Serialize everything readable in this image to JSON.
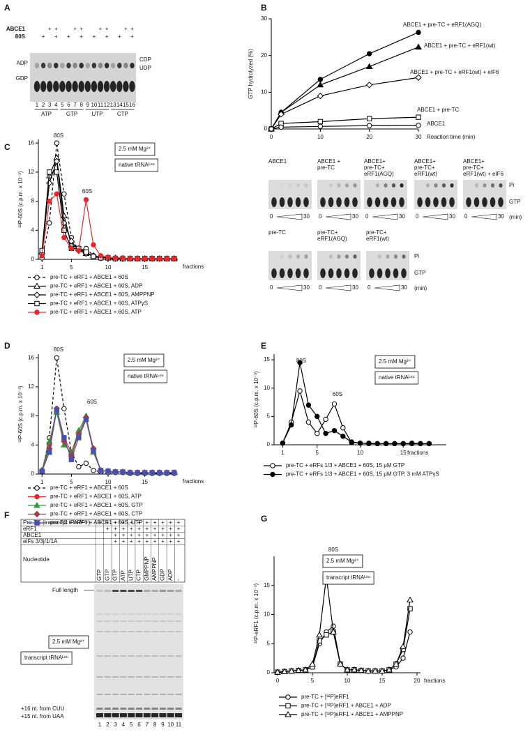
{
  "panels": [
    "A",
    "B",
    "C",
    "D",
    "E",
    "F",
    "G"
  ],
  "gel_a": {
    "rows": [
      {
        "label": "ABCE1",
        "marks": [
          null,
          null,
          "+",
          "+",
          null,
          null,
          "+",
          "+",
          null,
          null,
          "+",
          "+",
          null,
          null,
          "+",
          "+"
        ]
      },
      {
        "label": "80S",
        "marks": [
          null,
          "+",
          null,
          "+",
          null,
          "+",
          null,
          "+",
          null,
          "+",
          null,
          "+",
          null,
          "+",
          null,
          "+"
        ]
      }
    ],
    "left_labels": [
      "ADP",
      "GDP"
    ],
    "right_labels": [
      "CDP",
      "UDP"
    ],
    "lanes": [
      1,
      2,
      3,
      4,
      5,
      6,
      7,
      8,
      9,
      10,
      11,
      12,
      13,
      14,
      15,
      16
    ],
    "groups": [
      "ATP",
      "GTP",
      "UTP",
      "CTP"
    ]
  },
  "gels_b": {
    "row1": {
      "titles": [
        [
          "ABCE1"
        ],
        [
          "ABCE1 +",
          "pre-TC"
        ],
        [
          "ABCE1+",
          "pre-TC+",
          "eRF1(AGQ)"
        ],
        [
          "ABCE1+",
          "pre-TC+",
          "eRF1(wt)"
        ],
        [
          "ABCE1+",
          "pre-TC+",
          "eRF1(wt) + eIF6"
        ]
      ],
      "right": [
        "Pi",
        "GTP"
      ],
      "scale": [
        "0",
        "30"
      ],
      "unit": "(min)"
    },
    "row2": {
      "titles": [
        [
          "pre-TC"
        ],
        [
          "pre-TC+",
          "eRF1(AGQ)"
        ],
        [
          "pre-TC+",
          "eRF1(wt)"
        ]
      ],
      "right": [
        "Pi",
        "GTP"
      ],
      "scale": [
        "0",
        "30"
      ],
      "unit": "(min)"
    }
  },
  "panel_f": {
    "rows": [
      {
        "label": "Pre-TC (transcript tRNAᴸᵉᵘ)",
        "marks": [
          "+",
          "+",
          "+",
          "+",
          "+",
          "+",
          "+",
          "+",
          "+",
          "+",
          "+"
        ]
      },
      {
        "label": "eRF1",
        "marks": [
          null,
          "+",
          "+",
          "+",
          "+",
          "+",
          "+",
          "+",
          "+",
          "+",
          "+"
        ]
      },
      {
        "label": "ABCE1",
        "marks": [
          null,
          null,
          "+",
          "+",
          "+",
          "+",
          "+",
          "+",
          "+",
          "+",
          "+"
        ]
      },
      {
        "label": "eIFs 3/3j/1/1A",
        "marks": [
          null,
          null,
          "+",
          "+",
          "+",
          "+",
          "+",
          "+",
          "+",
          "+",
          "+"
        ]
      }
    ],
    "nucleotide_label": "Nucleotide",
    "nucleotides": [
      "GTP",
      "GTP",
      "GTP",
      "ATP",
      "UTP",
      "CTP",
      "GMPPNP",
      "AMPPNP",
      "GDP",
      "ADP",
      "-"
    ],
    "bands": [
      "Full length",
      "+16 nt. from CUU",
      "+15 nt. from UAA"
    ],
    "boxes": [
      "2.5 mM Mg²⁺",
      "transcript tRNAᴸᵉᵘ"
    ],
    "lanes": [
      1,
      2,
      3,
      4,
      5,
      6,
      7,
      8,
      9,
      10,
      11
    ]
  },
  "chart_data": [
    {
      "type": "line",
      "ylabel": "GTP hydrolyzed (%)",
      "xlabel": "Reaction time (min)",
      "x": [
        0,
        2,
        10,
        20,
        30
      ],
      "xlim": [
        0,
        30
      ],
      "xticks": [
        0,
        10,
        20,
        30
      ],
      "ylim": [
        0,
        30
      ],
      "yticks": [
        0,
        10,
        20,
        30
      ],
      "series": [
        {
          "name": "ABCE1 + pre-TC + eRF1(AGQ)",
          "color": "#000000",
          "marker": "circle",
          "filled": true,
          "values": [
            0,
            4.5,
            13.5,
            20.5,
            26.3
          ]
        },
        {
          "name": "ABCE1 + pre-TC + eRF1(wt)",
          "color": "#000000",
          "marker": "triangle",
          "filled": true,
          "values": [
            0,
            4.5,
            12,
            17,
            22.3
          ]
        },
        {
          "name": "ABCE1 + pre-TC + eRF1(wt) + eIF6",
          "color": "#000000",
          "marker": "diamond",
          "filled": false,
          "values": [
            0,
            4,
            9,
            12,
            14
          ]
        },
        {
          "name": "ABCE1 + pre-TC",
          "color": "#000000",
          "marker": "square",
          "filled": false,
          "values": [
            0,
            1.5,
            2,
            2.8,
            3.2
          ]
        },
        {
          "name": "ABCE1",
          "color": "#000000",
          "marker": "circle",
          "filled": false,
          "values": [
            0,
            0.5,
            0.7,
            0.9,
            1
          ]
        }
      ]
    },
    {
      "type": "line",
      "ylabel": "³²P-60S (c.p.m. x 10⁻³)",
      "xlabel": "fractions",
      "annotations": [
        "80S",
        "60S"
      ],
      "boxes": [
        "2.5 mM Mg²⁺",
        "native tRNAᴸᵉᵘ"
      ],
      "x": [
        1,
        2,
        3,
        4,
        5,
        6,
        7,
        8,
        9,
        10,
        11,
        12,
        13,
        14,
        15,
        16,
        17,
        18,
        19
      ],
      "xlim": [
        0.5,
        19.5
      ],
      "xticks": [
        1,
        5,
        10,
        15
      ],
      "ylim": [
        0,
        16.5
      ],
      "yticks": [
        0,
        4,
        8,
        12,
        16
      ],
      "series": [
        {
          "name": "pre-TC + eRF1 + ABCE1 + 60S",
          "color": "#000000",
          "marker": "circle",
          "filled": false,
          "dash": true,
          "values": [
            0.2,
            5,
            16,
            9,
            3,
            1.2,
            1.5,
            0.5,
            0.3,
            0.2,
            0.2,
            0.2,
            0.1,
            0.1,
            0.1,
            0.1,
            0.1,
            0.1,
            0.1
          ]
        },
        {
          "name": "pre-TC + eRF1 + ABCE1 + 60S, ADP",
          "color": "#000000",
          "marker": "triangle",
          "filled": false,
          "values": [
            1,
            11.5,
            14,
            6,
            2,
            1.5,
            0.8,
            0.5,
            0.3,
            0.2,
            0.2,
            0.1,
            0.1,
            0.1,
            0.1,
            0.1,
            0.1,
            0.1,
            0.1
          ]
        },
        {
          "name": "pre-TC + eRF1 + ABCE1 + 60S, AMPPNP",
          "color": "#000000",
          "marker": "diamond",
          "filled": false,
          "values": [
            0.8,
            10.5,
            13.5,
            5,
            2.5,
            1.2,
            0.8,
            0.5,
            0.2,
            0.2,
            0.1,
            0.1,
            0.1,
            0.1,
            0.1,
            0.1,
            0.1,
            0.1,
            0.1
          ]
        },
        {
          "name": "pre-TC + eRF1 + ABCE1 + 60S, ATPγS",
          "color": "#000000",
          "marker": "square",
          "filled": false,
          "values": [
            1.2,
            12,
            12,
            4,
            1.5,
            1.5,
            1,
            0.4,
            0.2,
            0.2,
            0.1,
            0.1,
            0.1,
            0.1,
            0.1,
            0.1,
            0.1,
            0.1,
            0.1
          ]
        },
        {
          "name": "pre-TC + eRF1 + ABCE1 + 60S, ATP",
          "color": "#e8262a",
          "marker": "circle",
          "filled": true,
          "values": [
            0.5,
            8,
            9,
            3,
            1.5,
            1.2,
            8.2,
            2,
            0.5,
            0.3,
            0.2,
            0.2,
            0.1,
            0.1,
            0.1,
            0.1,
            0.1,
            0.1,
            0.1
          ]
        }
      ]
    },
    {
      "type": "line",
      "ylabel": "³²P-60S (c.p.m. x 10⁻³)",
      "xlabel": "fractions",
      "annotations": [
        "80S",
        "60S"
      ],
      "boxes": [
        "2.5 mM Mg²⁺",
        "native tRNAᴸᵉᵘ"
      ],
      "x": [
        1,
        2,
        3,
        4,
        5,
        6,
        7,
        8,
        9,
        10,
        11,
        12,
        13,
        14,
        15,
        16,
        17,
        18,
        19
      ],
      "xlim": [
        0.5,
        19.5
      ],
      "xticks": [
        1,
        5,
        10,
        15
      ],
      "ylim": [
        0,
        16.5
      ],
      "yticks": [
        0,
        4,
        8,
        12,
        16
      ],
      "series": [
        {
          "name": "pre-TC + eRF1 + ABCE1 + 60S",
          "color": "#000000",
          "marker": "circle",
          "filled": false,
          "dash": true,
          "values": [
            0.3,
            5,
            16,
            9,
            3,
            1,
            1.5,
            0.5,
            0.3,
            0.2,
            0.2,
            0.2,
            0.1,
            0.1,
            0.1,
            0.1,
            0.1,
            0.1,
            0.1
          ]
        },
        {
          "name": "pre-TC + eRF1 + ABCE1 + 60S, ATP",
          "color": "#e8262a",
          "marker": "circle",
          "filled": true,
          "values": [
            0.5,
            4,
            9,
            5,
            3,
            5.5,
            7.5,
            3.5,
            0.5,
            0.4,
            0.3,
            0.3,
            0.2,
            0.2,
            0.2,
            0.2,
            0.2,
            0.2,
            0.2
          ]
        },
        {
          "name": "pre-TC + eRF1 + ABCE1 + 60S, GTP",
          "color": "#2e9a3c",
          "marker": "triangle",
          "filled": true,
          "values": [
            0.5,
            4.5,
            8.5,
            4,
            3,
            6,
            8,
            3,
            0.5,
            0.4,
            0.3,
            0.3,
            0.2,
            0.2,
            0.2,
            0.2,
            0.2,
            0.2,
            0.2
          ]
        },
        {
          "name": "pre-TC + eRF1 + ABCE1 + 60S, CTP",
          "color": "#a23c4a",
          "marker": "diamond",
          "filled": true,
          "values": [
            0.5,
            3.5,
            9,
            4.5,
            2.5,
            5.5,
            7.8,
            3.5,
            0.5,
            0.4,
            0.3,
            0.3,
            0.2,
            0.2,
            0.2,
            0.2,
            0.2,
            0.2,
            0.2
          ]
        },
        {
          "name": "pre-TC + eRF1 + ABCE1 + 60S, UTP",
          "color": "#4b4fae",
          "marker": "square",
          "filled": true,
          "values": [
            0.4,
            3,
            8.8,
            5,
            2,
            5,
            7.5,
            3.2,
            0.5,
            0.4,
            0.3,
            0.3,
            0.2,
            0.2,
            0.2,
            0.2,
            0.2,
            0.2,
            0.2
          ]
        }
      ]
    },
    {
      "type": "line",
      "ylabel": "³²P-60S (c.p.m. x 10⁻³)",
      "xlabel": "fractions",
      "annotations": [
        "80S",
        "60S"
      ],
      "boxes": [
        "2.5 mM Mg²⁺",
        "native tRNAᴸᵉᵘ"
      ],
      "x": [
        1,
        2,
        3,
        4,
        5,
        6,
        7,
        8,
        9,
        10,
        11,
        12,
        13,
        14,
        15,
        16,
        17,
        18
      ],
      "xlim": [
        0,
        20
      ],
      "xticks": [
        1,
        5,
        10,
        15
      ],
      "ylim": [
        0,
        16
      ],
      "yticks": [
        0,
        5,
        10,
        15
      ],
      "series": [
        {
          "name": "pre-TC + eRFs 1/3 + ABCE1 + 60S, 15 μM GTP",
          "color": "#000000",
          "marker": "circle",
          "filled": false,
          "values": [
            0.3,
            4,
            9.5,
            4,
            2,
            4.5,
            7.2,
            3,
            0.4,
            0.3,
            0.2,
            0.2,
            0.2,
            0.2,
            0.2,
            0.2,
            0.2,
            0.2
          ]
        },
        {
          "name": "pre-TC + eRFs 1/3 + ABCE1 + 60S, 15 μM GTP, 3 mM ATPγS",
          "color": "#000000",
          "marker": "circle",
          "filled": true,
          "values": [
            0.3,
            3.5,
            14.5,
            7,
            5,
            2,
            2.5,
            1.5,
            0.5,
            0.3,
            0.3,
            0.2,
            0.2,
            0.2,
            0.2,
            0.3,
            0.2,
            0.2
          ]
        }
      ]
    },
    {
      "type": "line",
      "ylabel": "³²P-eRF1 (c.p.m. x 10⁻³)",
      "xlabel": "fractions",
      "annotations": [
        "80S"
      ],
      "boxes": [
        "2.5 mM Mg²⁺",
        "transcript tRNAᴸᵉᵘ"
      ],
      "x": [
        0,
        1,
        2,
        3,
        4,
        5,
        6,
        7,
        8,
        9,
        10,
        11,
        12,
        13,
        14,
        15,
        16,
        17,
        18,
        19
      ],
      "xlim": [
        -0.5,
        20.5
      ],
      "xticks": [
        0,
        5,
        10,
        15,
        20
      ],
      "ylim": [
        0,
        20
      ],
      "yticks": [
        0,
        5,
        10,
        15
      ],
      "series": [
        {
          "name": "pre-TC + [³²P]eRF1",
          "color": "#000000",
          "marker": "circle",
          "filled": false,
          "values": [
            0.1,
            0.2,
            0.3,
            0.4,
            0.5,
            1,
            5,
            7,
            8,
            1.5,
            0.5,
            0.5,
            0.4,
            0.3,
            0.3,
            0.3,
            0.5,
            1,
            2.5,
            7
          ]
        },
        {
          "name": "pre-TC + [³²P]eRF1 + ABCE1 + ADP",
          "color": "#000000",
          "marker": "square",
          "filled": false,
          "values": [
            0.1,
            0.2,
            0.3,
            0.4,
            0.5,
            1,
            5.5,
            6.5,
            7,
            1.5,
            0.5,
            0.5,
            0.4,
            0.3,
            0.3,
            0.3,
            0.5,
            1.5,
            4,
            11
          ]
        },
        {
          "name": "pre-TC + [³²P]eRF1 + ABCE1 + AMPPNP",
          "color": "#000000",
          "marker": "triangle",
          "filled": false,
          "values": [
            0.1,
            0.2,
            0.3,
            0.4,
            0.5,
            1.5,
            6.5,
            16.5,
            7,
            1.5,
            0.5,
            0.5,
            0.4,
            0.3,
            0.3,
            0.3,
            0.5,
            1.5,
            4.5,
            12.5
          ]
        }
      ]
    }
  ]
}
